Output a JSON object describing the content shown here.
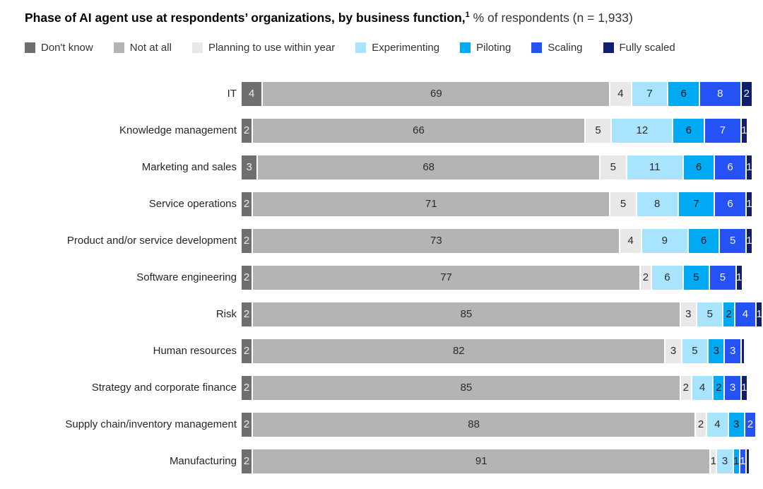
{
  "title": {
    "bold": "Phase of AI agent use at respondents’ organizations, by business function,",
    "superscript": "1",
    "regular": " % of respondents (n = 1,933)"
  },
  "chart_data": {
    "type": "bar",
    "variant": "horizontal-stacked",
    "title": "Phase of AI agent use at respondents’ organizations, by business function",
    "footnote_marker": "1",
    "subtitle": "% of respondents (n = 1,933)",
    "sample_size": "1,933",
    "unit": "percent",
    "legend_position": "top",
    "axis": "none",
    "series": [
      {
        "name": "Don't know",
        "color": "#6F6F6F",
        "text_color": "#ECECEC"
      },
      {
        "name": "Not at all",
        "color": "#B4B4B4",
        "text_color": "#2B2B2B"
      },
      {
        "name": "Planning to use within year",
        "color": "#E8E8E8",
        "text_color": "#2B2B2B"
      },
      {
        "name": "Experimenting",
        "color": "#A8E4FD",
        "text_color": "#2B2B2B"
      },
      {
        "name": "Piloting",
        "color": "#00A9F4",
        "text_color": "#1A1A1A"
      },
      {
        "name": "Scaling",
        "color": "#2452F5",
        "text_color": "#F2F2F2"
      },
      {
        "name": "Fully scaled",
        "color": "#0F1F6E",
        "text_color": "#E8E8E8"
      }
    ],
    "rows": [
      {
        "label": "IT",
        "segments": [
          {
            "v": 4,
            "t": "4"
          },
          {
            "v": 69,
            "t": "69"
          },
          {
            "v": 4,
            "t": "4"
          },
          {
            "v": 7,
            "t": "7"
          },
          {
            "v": 6,
            "t": "6"
          },
          {
            "v": 8,
            "t": "8"
          },
          {
            "v": 2,
            "t": "2"
          }
        ]
      },
      {
        "label": "Knowledge management",
        "segments": [
          {
            "v": 2,
            "t": "2"
          },
          {
            "v": 66,
            "t": "66"
          },
          {
            "v": 5,
            "t": "5"
          },
          {
            "v": 12,
            "t": "12"
          },
          {
            "v": 6,
            "t": "6"
          },
          {
            "v": 7,
            "t": "7"
          },
          {
            "v": 1,
            "t": "1"
          }
        ]
      },
      {
        "label": "Marketing and sales",
        "segments": [
          {
            "v": 3,
            "t": "3"
          },
          {
            "v": 68,
            "t": "68"
          },
          {
            "v": 5,
            "t": "5"
          },
          {
            "v": 11,
            "t": "11"
          },
          {
            "v": 6,
            "t": "6"
          },
          {
            "v": 6,
            "t": "6"
          },
          {
            "v": 1,
            "t": "1"
          }
        ]
      },
      {
        "label": "Service operations",
        "segments": [
          {
            "v": 2,
            "t": "2"
          },
          {
            "v": 71,
            "t": "71"
          },
          {
            "v": 5,
            "t": "5"
          },
          {
            "v": 8,
            "t": "8"
          },
          {
            "v": 7,
            "t": "7"
          },
          {
            "v": 6,
            "t": "6"
          },
          {
            "v": 1,
            "t": "1"
          }
        ]
      },
      {
        "label": "Product and/or service development",
        "segments": [
          {
            "v": 2,
            "t": "2"
          },
          {
            "v": 73,
            "t": "73"
          },
          {
            "v": 4,
            "t": "4"
          },
          {
            "v": 9,
            "t": "9"
          },
          {
            "v": 6,
            "t": "6"
          },
          {
            "v": 5,
            "t": "5"
          },
          {
            "v": 1,
            "t": "1"
          }
        ]
      },
      {
        "label": "Software engineering",
        "segments": [
          {
            "v": 2,
            "t": "2"
          },
          {
            "v": 77,
            "t": "77"
          },
          {
            "v": 2,
            "t": "2"
          },
          {
            "v": 6,
            "t": "6"
          },
          {
            "v": 5,
            "t": "5"
          },
          {
            "v": 5,
            "t": "5"
          },
          {
            "v": 1,
            "t": "1"
          }
        ]
      },
      {
        "label": "Risk",
        "segments": [
          {
            "v": 2,
            "t": "2"
          },
          {
            "v": 85,
            "t": "85"
          },
          {
            "v": 3,
            "t": "3"
          },
          {
            "v": 5,
            "t": "5"
          },
          {
            "v": 2,
            "t": "2"
          },
          {
            "v": 4,
            "t": "4"
          },
          {
            "v": 1,
            "t": "1"
          }
        ]
      },
      {
        "label": "Human resources",
        "segments": [
          {
            "v": 2,
            "t": "2"
          },
          {
            "v": 82,
            "t": "82"
          },
          {
            "v": 3,
            "t": "3"
          },
          {
            "v": 5,
            "t": "5"
          },
          {
            "v": 3,
            "t": "3"
          },
          {
            "v": 3,
            "t": "3"
          },
          {
            "v": 0.5,
            "t": ""
          }
        ]
      },
      {
        "label": "Strategy and corporate finance",
        "segments": [
          {
            "v": 2,
            "t": "2"
          },
          {
            "v": 85,
            "t": "85"
          },
          {
            "v": 2,
            "t": "2"
          },
          {
            "v": 4,
            "t": "4"
          },
          {
            "v": 2,
            "t": "2"
          },
          {
            "v": 3,
            "t": "3"
          },
          {
            "v": 1,
            "t": "1"
          }
        ]
      },
      {
        "label": "Supply chain/inventory management",
        "segments": [
          {
            "v": 2,
            "t": "2"
          },
          {
            "v": 88,
            "t": "88"
          },
          {
            "v": 2,
            "t": "2"
          },
          {
            "v": 4,
            "t": "4"
          },
          {
            "v": 3,
            "t": "3"
          },
          {
            "v": 2,
            "t": "2"
          }
        ]
      },
      {
        "label": "Manufacturing",
        "segments": [
          {
            "v": 2,
            "t": "2"
          },
          {
            "v": 91,
            "t": "91"
          },
          {
            "v": 1,
            "t": "1"
          },
          {
            "v": 3,
            "t": "3"
          },
          {
            "v": 1,
            "t": "1"
          },
          {
            "v": 1,
            "t": "1"
          },
          {
            "v": 0.5,
            "t": ""
          }
        ]
      }
    ]
  }
}
